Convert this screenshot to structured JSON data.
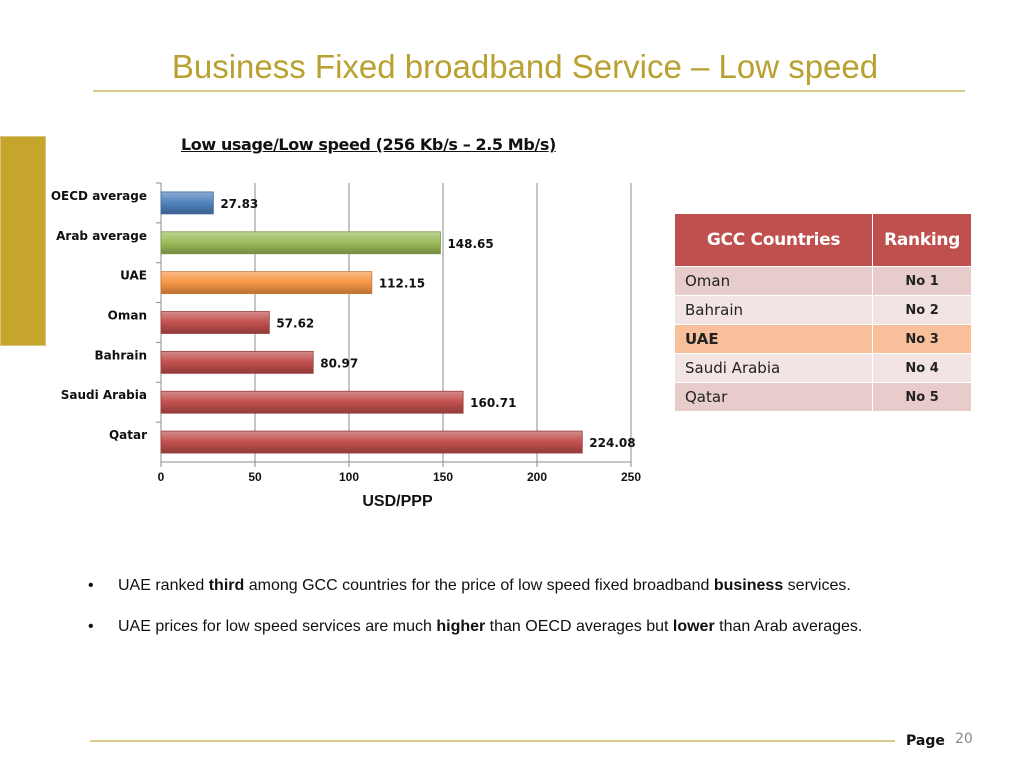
{
  "slide": {
    "title": "Business Fixed broadband Service – Low speed",
    "page_label": "Page",
    "page_number": "20",
    "accent_color": "#b8a130"
  },
  "chart_data": {
    "type": "bar",
    "orientation": "horizontal",
    "title": "Low usage/Low speed (256 Kb/s – 2.5 Mb/s)",
    "xlabel": "USD/PPP",
    "ylabel": "",
    "categories": [
      "OECD average",
      "Arab average",
      "UAE",
      "Oman",
      "Bahrain",
      "Saudi Arabia",
      "Qatar"
    ],
    "values": [
      27.83,
      148.65,
      112.15,
      57.62,
      80.97,
      160.71,
      224.08
    ],
    "value_labels": [
      "27.83",
      "148.65",
      "112.15",
      "57.62",
      "80.97",
      "160.71",
      "224.08"
    ],
    "colors": [
      "#4f81bd",
      "#9bbb59",
      "#f79646",
      "#c0504d",
      "#c0504d",
      "#c0504d",
      "#c0504d"
    ],
    "xlim": [
      0,
      250
    ],
    "xticks": [
      "0",
      "50",
      "100",
      "150",
      "200",
      "250"
    ],
    "grid": true
  },
  "table": {
    "headers": [
      "GCC Countries",
      "Ranking"
    ],
    "rows": [
      {
        "country": "Oman",
        "rank": "No 1",
        "highlight": false
      },
      {
        "country": "Bahrain",
        "rank": "No 2",
        "highlight": false
      },
      {
        "country": "UAE",
        "rank": "No 3",
        "highlight": true
      },
      {
        "country": "Saudi Arabia",
        "rank": "No 4",
        "highlight": false
      },
      {
        "country": "Qatar",
        "rank": "No 5",
        "highlight": false
      }
    ],
    "header_color": "#c0504d",
    "highlight_color": "#f7c09b"
  },
  "bullets": [
    {
      "pre": "UAE ranked ",
      "b1": "third",
      "mid": " among GCC countries for the price of low speed fixed broadband ",
      "b2": "business",
      "post": " services."
    },
    {
      "pre": "UAE prices for low speed services are much ",
      "b1": "higher",
      "mid": " than OECD averages but ",
      "b2": "lower",
      "post": " than Arab averages."
    }
  ],
  "bullet_symbol": "•"
}
